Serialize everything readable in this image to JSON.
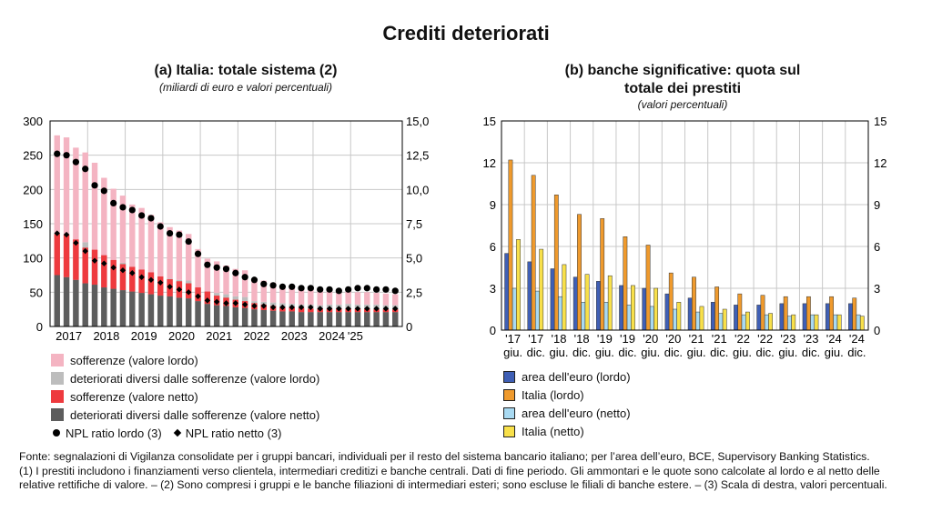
{
  "page": {
    "title": "Crediti deteriorati"
  },
  "panel_a": {
    "title": "(a) Italia: totale sistema (2)",
    "subtitle": "(miliardi di euro e valori percentuali)",
    "legend": [
      {
        "label": "sofferenze (valore lordo)",
        "color": "#f4b4c2"
      },
      {
        "label": "deteriorati diversi dalle sofferenze (valore lordo)",
        "color": "#bdbdbd"
      },
      {
        "label": "sofferenze (valore netto)",
        "color": "#ee3a3e"
      },
      {
        "label": "deteriorati diversi dalle sofferenze (valore netto)",
        "color": "#5d5d5d"
      }
    ],
    "legend_markers": {
      "lordo": "NPL ratio lordo (3)",
      "netto": "NPL ratio netto (3)"
    }
  },
  "panel_b": {
    "title_line1": "(b) banche significative: quota sul",
    "title_line2": "totale dei prestiti",
    "subtitle": "(valori percentuali)",
    "legend": [
      {
        "label": "area dell'euro (lordo)",
        "color": "#3f5fb5"
      },
      {
        "label": "Italia (lordo)",
        "color": "#ef9a2d"
      },
      {
        "label": "area dell'euro (netto)",
        "color": "#a9daf2"
      },
      {
        "label": "Italia (netto)",
        "color": "#f8e04a"
      }
    ]
  },
  "notes": {
    "fonte": "Fonte: segnalazioni di Vigilanza consolidate per i gruppi bancari, individuali per il resto del sistema bancario italiano; per l’area dell’euro, BCE, Supervisory Banking Statistics.",
    "note": "(1) I prestiti includono i finanziamenti verso clientela, intermediari creditizi e banche centrali. Dati di fine periodo. Gli ammontari e le quote sono calcolate al lordo e al netto delle relative rettifiche di valore. – (2) Sono compresi i gruppi e le banche filiazioni di intermediari esteri; sono escluse le filiali di banche estere. – (3) Scala di destra, valori percentuali."
  },
  "chart_data": [
    {
      "type": "bar",
      "subtype": "stacked bars with overlaid points (dual axis)",
      "title": "(a) Italia: totale sistema (2)",
      "units": "miliardi di euro (left), valori percentuali (right)",
      "ylim": [
        0,
        300
      ],
      "yticks": [
        0,
        50,
        100,
        150,
        200,
        250,
        300
      ],
      "y2lim": [
        0,
        15
      ],
      "y2ticks": [
        "0",
        "2,5",
        "5,0",
        "7,5",
        "10,0",
        "12,5",
        "15,0"
      ],
      "year_labels": [
        "2017",
        "2018",
        "2019",
        "2020",
        "2021",
        "2022",
        "2023",
        "2024",
        "'25"
      ],
      "periods_per_year": 4,
      "series_bars": [
        {
          "name": "sofferenze (valore lordo)",
          "values": [
            143,
            145,
            142,
            131,
            128,
            113,
            104,
            98,
            95,
            93,
            86,
            79,
            75,
            72,
            68,
            57,
            48,
            46,
            42,
            40,
            39,
            33,
            31,
            29,
            25,
            24,
            22,
            21,
            20,
            19,
            19,
            18,
            18,
            18,
            17,
            17,
            16
          ]
        },
        {
          "name": "deteriorati diversi dalle sofferenze (valore lordo)",
          "values": [
            136,
            131,
            119,
            123,
            111,
            104,
            97,
            93,
            83,
            80,
            77,
            73,
            70,
            68,
            67,
            56,
            51,
            49,
            47,
            44,
            43,
            37,
            36,
            35,
            34,
            33,
            32,
            32,
            31,
            32,
            32,
            33,
            32,
            32,
            32,
            31,
            31
          ]
        },
        {
          "name": "sofferenze (valore netto)",
          "values": [
            60,
            62,
            59,
            52,
            51,
            47,
            42,
            38,
            36,
            34,
            32,
            28,
            25,
            24,
            22,
            20,
            18,
            14,
            12,
            11,
            10,
            9,
            8,
            7,
            6,
            6,
            6,
            5,
            5,
            5,
            5,
            5,
            5,
            5,
            4,
            4,
            4
          ]
        },
        {
          "name": "deteriorati diversi dalle sofferenze (valore netto)",
          "values": [
            75,
            72,
            68,
            63,
            61,
            57,
            55,
            53,
            51,
            49,
            47,
            45,
            44,
            42,
            41,
            37,
            33,
            31,
            30,
            28,
            27,
            25,
            24,
            23,
            22,
            22,
            21,
            21,
            21,
            21,
            21,
            21,
            21,
            21,
            21,
            21,
            21
          ]
        }
      ],
      "series_points": [
        {
          "name": "NPL ratio lordo (3)",
          "values": [
            12.6,
            12.5,
            12.0,
            11.5,
            10.3,
            9.9,
            9.0,
            8.7,
            8.5,
            8.1,
            7.9,
            7.3,
            6.8,
            6.7,
            6.2,
            5.3,
            4.5,
            4.3,
            4.2,
            3.9,
            3.6,
            3.4,
            3.1,
            3.0,
            2.9,
            2.9,
            2.8,
            2.8,
            2.7,
            2.7,
            2.6,
            2.7,
            2.8,
            2.8,
            2.7,
            2.7,
            2.6
          ]
        },
        {
          "name": "NPL ratio netto (3)",
          "values": [
            6.8,
            6.7,
            6.1,
            5.5,
            4.8,
            4.6,
            4.3,
            4.1,
            3.9,
            3.6,
            3.4,
            3.2,
            2.9,
            2.7,
            2.5,
            2.2,
            1.9,
            1.8,
            1.7,
            1.7,
            1.6,
            1.5,
            1.5,
            1.4,
            1.4,
            1.4,
            1.4,
            1.4,
            1.3,
            1.3,
            1.3,
            1.3,
            1.3,
            1.3,
            1.3,
            1.3,
            1.3
          ]
        }
      ]
    },
    {
      "type": "bar",
      "title": "(b) banche significative: quota sul totale dei prestiti",
      "units": "valori percentuali",
      "ylim": [
        0,
        15
      ],
      "yticks": [
        0,
        3,
        6,
        9,
        12,
        15
      ],
      "categories": [
        "'17 giu.",
        "'17 dic.",
        "'18 giu.",
        "'18 dic.",
        "'19 giu.",
        "'19 dic.",
        "'20 giu.",
        "'20 dic.",
        "'21 giu.",
        "'21 dic.",
        "'22 giu.",
        "'22 dic.",
        "'23 giu.",
        "'23 dic.",
        "'24 giu.",
        "'24 dic."
      ],
      "category_years": [
        "'17",
        "'17",
        "'18",
        "'18",
        "'19",
        "'19",
        "'20",
        "'20",
        "'21",
        "'21",
        "'22",
        "'22",
        "'23",
        "'23",
        "'24",
        "'24"
      ],
      "category_halves": [
        "giu.",
        "dic.",
        "giu.",
        "dic.",
        "giu.",
        "dic.",
        "giu.",
        "dic.",
        "giu.",
        "dic.",
        "giu.",
        "dic.",
        "giu.",
        "dic.",
        "giu.",
        "dic."
      ],
      "series": [
        {
          "name": "area dell'euro (lordo)",
          "values": [
            5.5,
            4.9,
            4.4,
            3.8,
            3.5,
            3.2,
            3.0,
            2.6,
            2.3,
            2.0,
            1.8,
            1.8,
            1.9,
            1.9,
            1.9,
            1.9
          ]
        },
        {
          "name": "Italia (lordo)",
          "values": [
            12.2,
            11.1,
            9.7,
            8.3,
            8.0,
            6.7,
            6.1,
            4.1,
            3.8,
            3.1,
            2.6,
            2.5,
            2.4,
            2.4,
            2.4,
            2.3
          ]
        },
        {
          "name": "area dell'euro (netto)",
          "values": [
            3.0,
            2.8,
            2.4,
            2.0,
            2.0,
            1.8,
            1.7,
            1.5,
            1.3,
            1.2,
            1.1,
            1.1,
            1.0,
            1.1,
            1.1,
            1.1
          ]
        },
        {
          "name": "Italia (netto)",
          "values": [
            6.5,
            5.8,
            4.7,
            4.0,
            3.9,
            3.2,
            3.0,
            2.0,
            1.7,
            1.5,
            1.3,
            1.2,
            1.1,
            1.1,
            1.1,
            1.0
          ]
        }
      ]
    }
  ]
}
